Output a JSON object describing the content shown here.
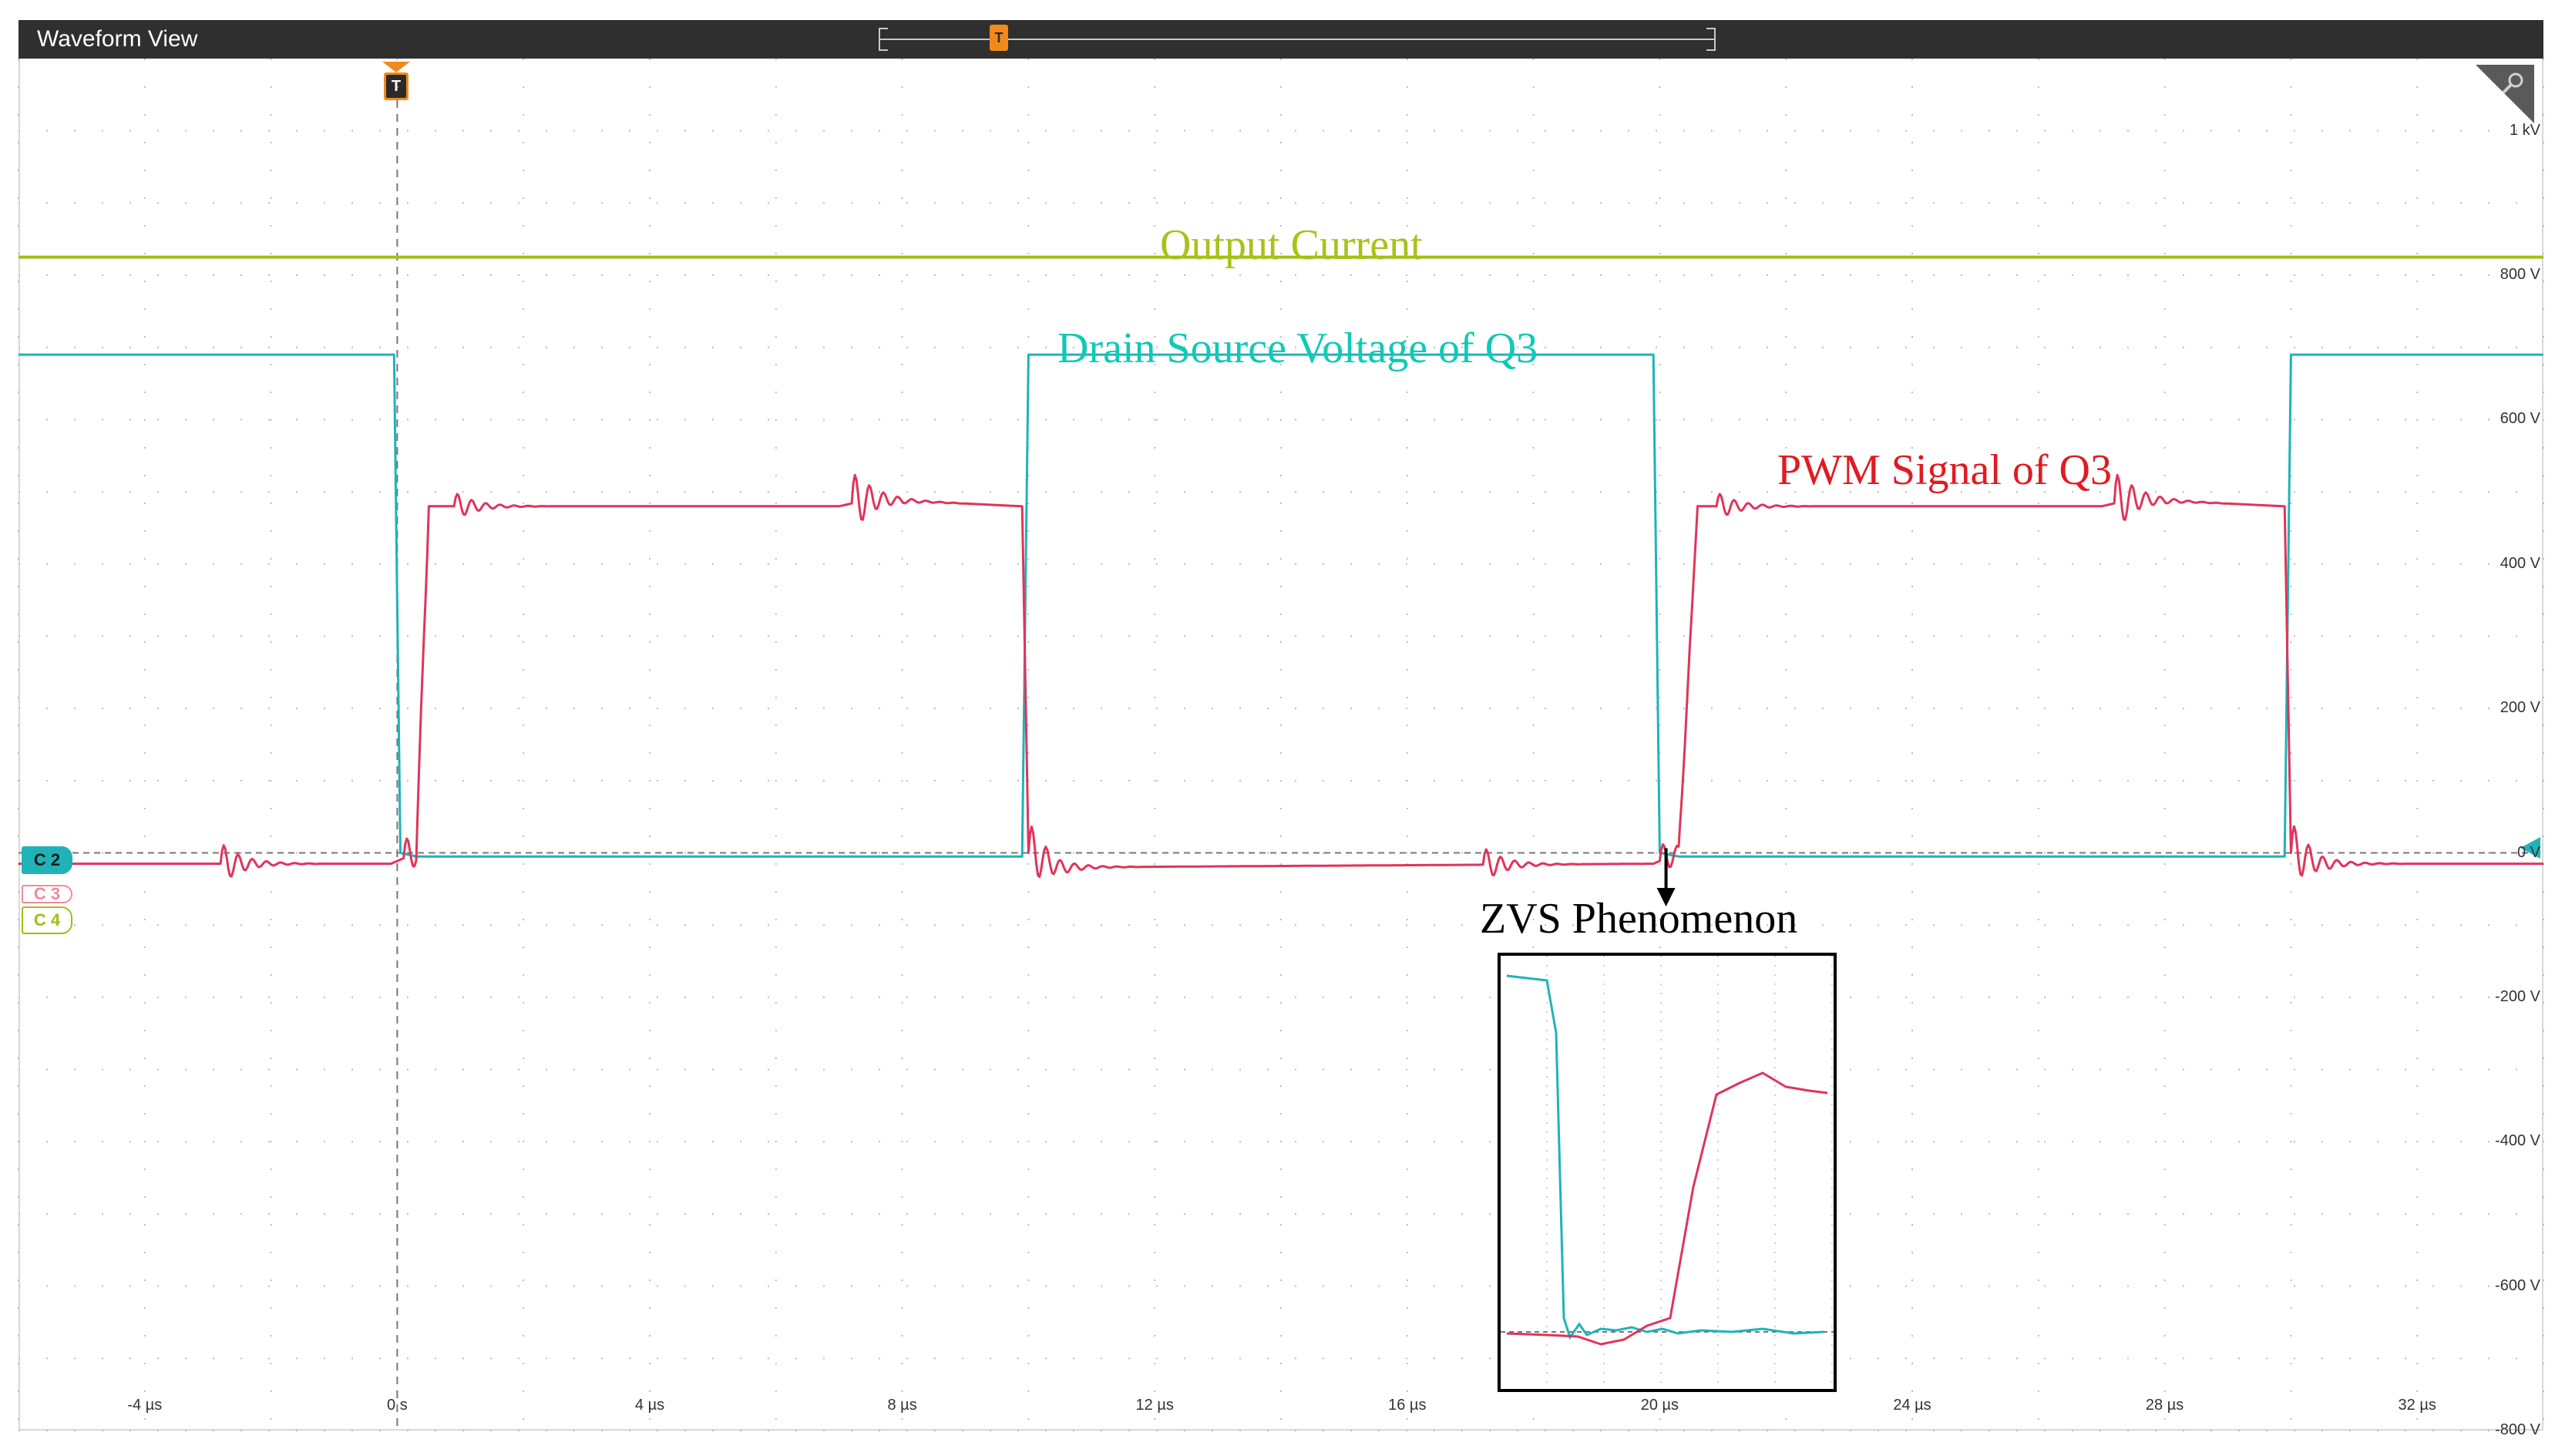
{
  "window": {
    "title": "Waveform View"
  },
  "trigger": {
    "label": "T"
  },
  "colors": {
    "output_current": "#9fbf16",
    "drain_source": "#1fb3b8",
    "pwm": "#e0345a",
    "label_drain": "#10c9b6",
    "label_pwm": "#e11b22",
    "label_current": "#a8c219",
    "titlebar": "#2f2f2f",
    "trigger": "#f08a1c"
  },
  "labels": {
    "output_current": "Output Current",
    "drain_source": "Drain Source Voltage of Q3",
    "pwm": "PWM Signal of Q3",
    "zvs": "ZVS Phenomenon"
  },
  "channels": [
    {
      "tag": "C 2",
      "color": "#1fb3b8",
      "selected": true
    },
    {
      "tag": "C 3",
      "color": "#f08aa0",
      "selected": false
    },
    {
      "tag": "C 4",
      "color": "#9fbf16",
      "selected": false
    }
  ],
  "chart_data": {
    "type": "line",
    "x_unit": "µs",
    "y_unit": "V",
    "xlim": [
      -6,
      34
    ],
    "ylim": [
      -800,
      1100
    ],
    "x_ticks": [
      "-4 µs",
      "0 s",
      "4 µs",
      "8 µs",
      "12 µs",
      "16 µs",
      "20 µs",
      "24 µs",
      "28 µs",
      "32 µs"
    ],
    "y_ticks": [
      "1 kV",
      "800 V",
      "600 V",
      "400 V",
      "200 V",
      "0 V",
      "-200 V",
      "-400 V",
      "-600 V",
      "-800 V"
    ],
    "grid": true,
    "series": [
      {
        "key": "output_current",
        "x": [
          -6,
          34
        ],
        "y": [
          825,
          825
        ]
      },
      {
        "key": "drain_source",
        "x": [
          -6,
          -0.05,
          0.05,
          0.3,
          0.5,
          9.9,
          10.0,
          10.2,
          19.9,
          20.0,
          20.3,
          20.5,
          29.9,
          30.0,
          30.2,
          34
        ],
        "y": [
          690,
          690,
          0,
          -5,
          -5,
          -5,
          690,
          690,
          690,
          0,
          -5,
          -5,
          -5,
          690,
          690,
          690
        ]
      },
      {
        "key": "pwm",
        "x": [
          -6,
          -0.1,
          0.3,
          0.5,
          0.8,
          7.0,
          7.5,
          9.9,
          10.0,
          10.5,
          19.9,
          20.3,
          20.6,
          27.0,
          27.5,
          29.9,
          30.0,
          30.5,
          34
        ],
        "y": [
          -15,
          -15,
          0,
          480,
          480,
          480,
          490,
          480,
          0,
          -20,
          -15,
          0,
          480,
          480,
          490,
          480,
          0,
          -15,
          -15
        ]
      }
    ],
    "annotation": {
      "text": "ZVS Phenomenon",
      "x": 20.1
    }
  }
}
